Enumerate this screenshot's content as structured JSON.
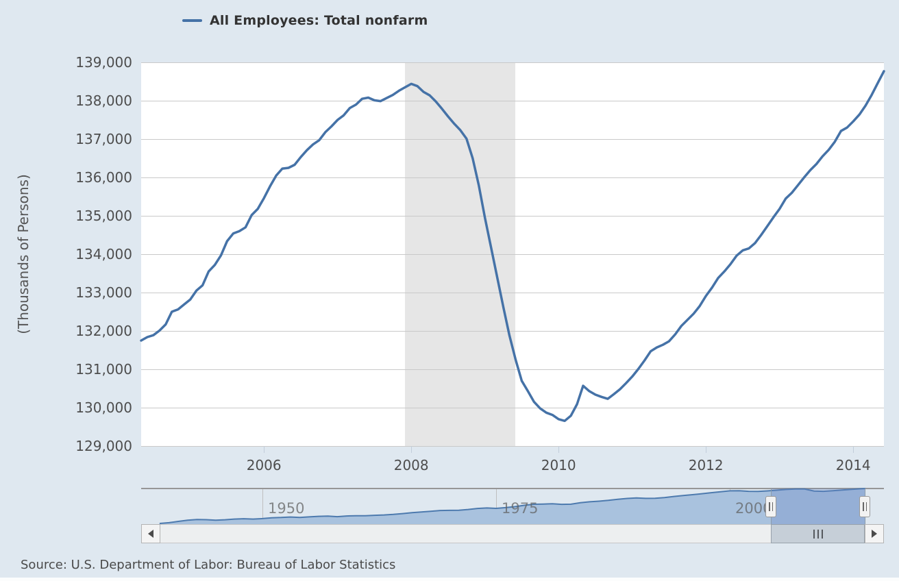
{
  "legend": {
    "label": "All Employees: Total nonfarm"
  },
  "y_axis": {
    "title": "(Thousands of Persons)",
    "ticks": [
      "139,000",
      "138,000",
      "137,000",
      "136,000",
      "135,000",
      "134,000",
      "133,000",
      "132,000",
      "131,000",
      "130,000",
      "129,000"
    ]
  },
  "x_axis": {
    "ticks": [
      "2006",
      "2008",
      "2010",
      "2012",
      "2014"
    ]
  },
  "navigator": {
    "labels": [
      "1950",
      "1975",
      "2000"
    ],
    "handle_icon": "grip-lines-vertical"
  },
  "scrollbar": {
    "left_arrow_icon": "triangle-left",
    "right_arrow_icon": "triangle-right",
    "thumb_grip_icon": "grip-lines-vertical"
  },
  "source": {
    "text": "Source: U.S. Department of Labor: Bureau of Labor Statistics"
  },
  "colors": {
    "page_background": "#dfe8f0",
    "plot_background": "#ffffff",
    "series_line": "#4572a7",
    "recession_band": "#e6e6e6",
    "gridline": "#c9c9c9",
    "navigator_area_fill": "#a9c2de",
    "navigator_line": "#4d7aae",
    "navigator_mask": "rgba(102,133,194,0.3)",
    "label_text": "#4d4d4d"
  },
  "chart_data": {
    "type": "line",
    "title": "All Employees: Total nonfarm",
    "ylabel": "(Thousands of Persons)",
    "units": "Thousands of Persons",
    "frequency": "monthly",
    "grid": "horizontal",
    "legend_position": "top",
    "ylim": [
      129000,
      139000
    ],
    "ytick_step": 1000,
    "x_start_year": 2004,
    "x_start_month": 5,
    "x_end_year": 2014,
    "x_end_month": 6,
    "x_tick_years": [
      2006,
      2008,
      2010,
      2012,
      2014
    ],
    "recession_band": {
      "start_year": 2007,
      "start_month": 12,
      "end_year": 2009,
      "end_month": 6
    },
    "series": [
      {
        "name": "All Employees: Total nonfarm",
        "color": "#4572a7",
        "values": [
          131750,
          131840,
          131890,
          132010,
          132170,
          132500,
          132560,
          132690,
          132820,
          133050,
          133190,
          133550,
          133720,
          133970,
          134340,
          134540,
          134600,
          134700,
          135020,
          135180,
          135460,
          135770,
          136050,
          136230,
          136250,
          136330,
          136530,
          136710,
          136860,
          136970,
          137180,
          137330,
          137500,
          137620,
          137810,
          137900,
          138050,
          138080,
          138010,
          137990,
          138070,
          138150,
          138260,
          138350,
          138440,
          138380,
          138230,
          138140,
          137980,
          137790,
          137590,
          137400,
          137230,
          137010,
          136500,
          135800,
          134950,
          134180,
          133400,
          132620,
          131880,
          131250,
          130700,
          130430,
          130150,
          129980,
          129870,
          129810,
          129700,
          129655,
          129790,
          130090,
          130570,
          130430,
          130340,
          130280,
          130230,
          130350,
          130480,
          130640,
          130810,
          131010,
          131230,
          131470,
          131570,
          131640,
          131730,
          131910,
          132130,
          132290,
          132450,
          132650,
          132910,
          133130,
          133380,
          133550,
          133740,
          133960,
          134100,
          134150,
          134290,
          134500,
          134730,
          134960,
          135180,
          135450,
          135600,
          135800,
          136000,
          136190,
          136350,
          136550,
          136720,
          136930,
          137210,
          137300,
          137460,
          137640,
          137870,
          138150,
          138460,
          138770
        ]
      }
    ],
    "navigator": {
      "type": "area",
      "label_years": [
        1950,
        1975,
        2000
      ],
      "selected_range": [
        2004.37,
        2014.5
      ],
      "x": [
        1939,
        1940,
        1941,
        1942,
        1943,
        1944,
        1945,
        1946,
        1947,
        1948,
        1949,
        1950,
        1951,
        1952,
        1953,
        1954,
        1955,
        1956,
        1957,
        1958,
        1959,
        1960,
        1961,
        1962,
        1963,
        1964,
        1965,
        1966,
        1967,
        1968,
        1969,
        1970,
        1971,
        1972,
        1973,
        1974,
        1975,
        1976,
        1977,
        1978,
        1979,
        1980,
        1981,
        1982,
        1983,
        1984,
        1985,
        1986,
        1987,
        1988,
        1989,
        1990,
        1991,
        1992,
        1993,
        1994,
        1995,
        1996,
        1997,
        1998,
        1999,
        2000,
        2001,
        2002,
        2003,
        2004,
        2005,
        2006,
        2007,
        2008,
        2009,
        2010,
        2011,
        2012,
        2013,
        2014,
        2014.5
      ],
      "values": [
        30100,
        32400,
        36500,
        40100,
        42450,
        41900,
        40400,
        41700,
        43900,
        44900,
        43800,
        45200,
        47850,
        48800,
        50200,
        49000,
        50700,
        52400,
        52900,
        51300,
        53300,
        54200,
        54000,
        55500,
        56700,
        58300,
        60800,
        63900,
        65800,
        67900,
        70400,
        70900,
        71300,
        73700,
        76800,
        78300,
        77000,
        79400,
        82500,
        86700,
        89900,
        90500,
        91300,
        89600,
        90200,
        94500,
        97500,
        99500,
        102100,
        105300,
        108000,
        109500,
        108300,
        108600,
        110800,
        114300,
        117300,
        119700,
        122800,
        126000,
        129000,
        131800,
        131900,
        130300,
        130000,
        131500,
        133700,
        136100,
        137600,
        137200,
        131200,
        130300,
        131900,
        134100,
        136400,
        138200,
        138770
      ]
    }
  }
}
